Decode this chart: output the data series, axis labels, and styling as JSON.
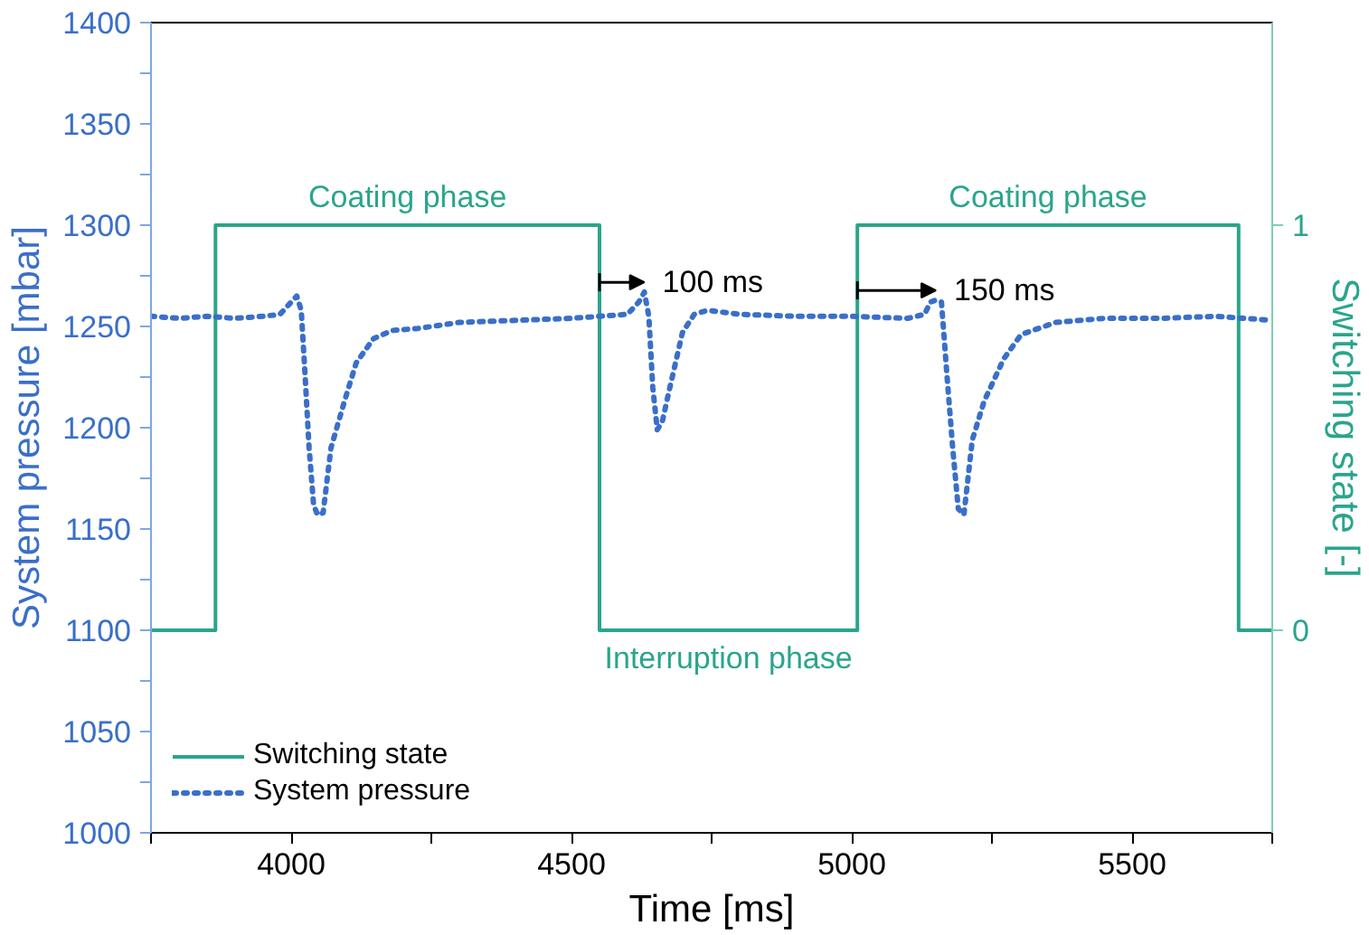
{
  "chart_data": {
    "type": "line",
    "xlabel": "Time [ms]",
    "ylabel": "System pressure [mbar]",
    "y2label": "Switching state [-]",
    "xlim": [
      3750,
      5750
    ],
    "xticks": [
      {
        "value": 3750,
        "label": null
      },
      4000,
      {
        "value": 4250,
        "label": null
      },
      4500,
      {
        "value": 4750,
        "label": null
      },
      5000,
      {
        "value": 5250,
        "label": null
      },
      5500,
      {
        "value": 5750,
        "label": null
      }
    ],
    "ylim": [
      1000,
      1400
    ],
    "yticks": [
      1000,
      {
        "value": 1025,
        "label": null
      },
      1050,
      {
        "value": 1075,
        "label": null
      },
      1100,
      {
        "value": 1125,
        "label": null
      },
      1150,
      {
        "value": 1175,
        "label": null
      },
      1200,
      {
        "value": 1225,
        "label": null
      },
      1250,
      {
        "value": 1275,
        "label": null
      },
      1300,
      {
        "value": 1325,
        "label": null
      },
      1350,
      {
        "value": 1375,
        "label": null
      },
      1400
    ],
    "y2lim": [
      -0.5,
      1.5
    ],
    "y2ticks": [
      0,
      1
    ],
    "grid": false,
    "legend": "bottom left",
    "line_style": "solid",
    "marker": "none",
    "series": [
      {
        "name": "Switching state",
        "type": "step",
        "axis": "y2",
        "color": "#2aa58c",
        "x": [
          3750,
          3865,
          4550,
          5010,
          5690,
          5750
        ],
        "values": [
          0,
          1,
          0,
          1,
          0,
          0
        ]
      },
      {
        "name": "System pressure",
        "color": "#3a6fc9",
        "line_style": "dotted",
        "x": [
          3750,
          3800,
          3850,
          3900,
          3950,
          3980,
          4000,
          4010,
          4018,
          4025,
          4032,
          4040,
          4047,
          4057,
          4071,
          4095,
          4116,
          4147,
          4180,
          4226,
          4300,
          4400,
          4500,
          4600,
          4620,
          4630,
          4638,
          4645,
          4653,
          4662,
          4674,
          4698,
          4719,
          4743,
          4800,
          4900,
          5000,
          5100,
          5130,
          5140,
          5150,
          5160,
          5170,
          5180,
          5190,
          5200,
          5215,
          5236,
          5271,
          5302,
          5364,
          5450,
          5550,
          5650,
          5750
        ],
        "values": [
          1255,
          1254,
          1255,
          1254,
          1255,
          1256,
          1262,
          1265,
          1258,
          1225,
          1190,
          1162,
          1157,
          1158,
          1190,
          1213,
          1232,
          1244,
          1248,
          1249,
          1252,
          1253,
          1254,
          1256,
          1262,
          1267,
          1255,
          1220,
          1199,
          1203,
          1218,
          1247,
          1256,
          1258,
          1256,
          1255,
          1255,
          1254,
          1256,
          1262,
          1263,
          1262,
          1225,
          1190,
          1160,
          1157,
          1194,
          1213,
          1234,
          1246,
          1252,
          1254,
          1254,
          1255,
          1253
        ]
      }
    ],
    "annotations": [
      "Coating phase",
      "100 ms",
      "Interruption phase",
      "Coating phase",
      "150 ms"
    ]
  }
}
